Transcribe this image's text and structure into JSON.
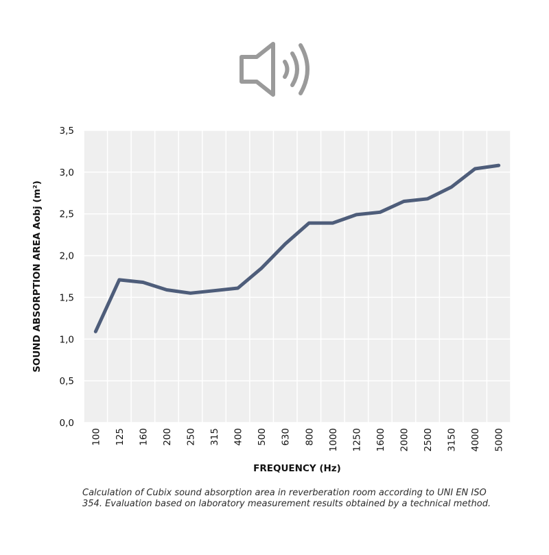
{
  "icon": {
    "name": "speaker-sound-icon",
    "color": "#9a9a9a"
  },
  "caption": "Calculation of Cubix sound absorption area in reverberation room according to UNI EN ISO 354. Evaluation based on laboratory measurement results obtained by a technical method.",
  "chart_data": {
    "type": "line",
    "title": "",
    "xlabel": "FREQUENCY (Hz)",
    "ylabel": "SOUND ABSORPTION AREA Aobj (m²)",
    "ylim": [
      0,
      3.5
    ],
    "yticks": [
      "0,0",
      "0,5",
      "1,0",
      "1,5",
      "2,0",
      "2,5",
      "3,0",
      "3,5"
    ],
    "yticks_values": [
      0,
      0.5,
      1.0,
      1.5,
      2.0,
      2.5,
      3.0,
      3.5
    ],
    "categories": [
      "100",
      "125",
      "160",
      "200",
      "250",
      "315",
      "400",
      "500",
      "630",
      "800",
      "1000",
      "1250",
      "1600",
      "2000",
      "2500",
      "3150",
      "4000",
      "5000"
    ],
    "series": [
      {
        "values": [
          1.09,
          1.71,
          1.68,
          1.59,
          1.55,
          1.58,
          1.61,
          1.85,
          2.14,
          2.39,
          2.39,
          2.49,
          2.52,
          2.65,
          2.68,
          2.82,
          3.04,
          3.08
        ],
        "color": "#4e5d7a"
      }
    ],
    "grid": true,
    "legend": "none",
    "plot_background": "#efefef",
    "grid_color": "#ffffff"
  }
}
